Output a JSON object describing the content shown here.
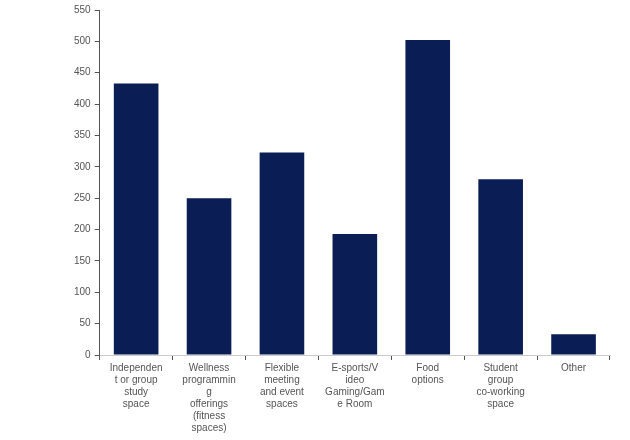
{
  "chart_data": {
    "type": "bar",
    "categories": [
      "Independent or group study space",
      "Wellness programming offerings (fitness spaces)",
      "Flexible meeting and event spaces",
      "E-sports/Video Gaming/Game Room",
      "Food options",
      "Student group co-working space",
      "Other"
    ],
    "values": [
      433,
      250,
      323,
      193,
      502,
      280,
      33
    ],
    "color": "#0b1d55",
    "ylim": [
      0,
      550
    ],
    "yticks": [
      0,
      50,
      100,
      150,
      200,
      250,
      300,
      350,
      400,
      450,
      500,
      550
    ],
    "grid": false
  }
}
